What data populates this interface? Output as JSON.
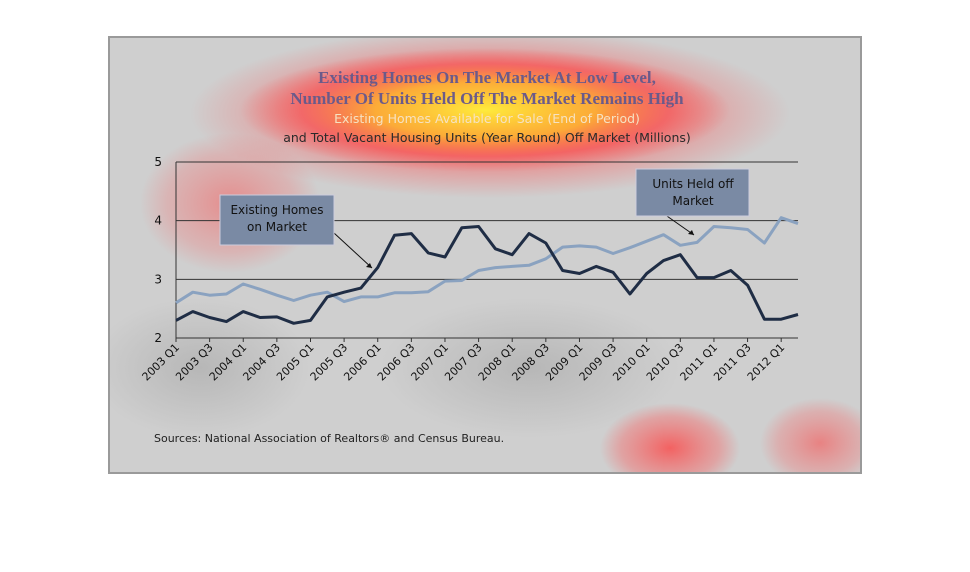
{
  "chart_data": {
    "type": "line",
    "title_line1": "Existing Homes On The Market At Low Level,",
    "title_line2": "Number Of Units Held Off The Market Remains High",
    "subtitle_line1": "Existing Homes Available for Sale (End of Period)",
    "subtitle_line2": "and Total Vacant Housing Units (Year Round) Off Market (Millions)",
    "source": "Sources: National Association of Realtors® and Census Bureau.",
    "ylim": [
      2,
      5
    ],
    "y_ticks": [
      "2",
      "3",
      "4",
      "5"
    ],
    "grid": true,
    "x": [
      "2003 Q1",
      "2003 Q2",
      "2003 Q3",
      "2003 Q4",
      "2004 Q1",
      "2004 Q2",
      "2004 Q3",
      "2004 Q4",
      "2005 Q1",
      "2005 Q2",
      "2005 Q3",
      "2005 Q4",
      "2006 Q1",
      "2006 Q2",
      "2006 Q3",
      "2006 Q4",
      "2007 Q1",
      "2007 Q2",
      "2007 Q3",
      "2007 Q4",
      "2008 Q1",
      "2008 Q2",
      "2008 Q3",
      "2008 Q4",
      "2009 Q1",
      "2009 Q2",
      "2009 Q3",
      "2009 Q4",
      "2010 Q1",
      "2010 Q2",
      "2010 Q3",
      "2010 Q4",
      "2011 Q1",
      "2011 Q2",
      "2011 Q3",
      "2011 Q4",
      "2012 Q1",
      "2012 Q2"
    ],
    "x_tick_labels": [
      "2003 Q1",
      "2003 Q3",
      "2004 Q1",
      "2004 Q3",
      "2005 Q1",
      "2005 Q3",
      "2006 Q1",
      "2006 Q3",
      "2007 Q1",
      "2007 Q3",
      "2008 Q1",
      "2008 Q3",
      "2009 Q1",
      "2009 Q3",
      "2010 Q1",
      "2010 Q3",
      "2011 Q1",
      "2011 Q3",
      "2012 Q1"
    ],
    "series": [
      {
        "name": "Existing Homes on Market",
        "color": "#1f2d45",
        "values": [
          2.3,
          2.45,
          2.35,
          2.28,
          2.45,
          2.35,
          2.36,
          2.25,
          2.3,
          2.7,
          2.78,
          2.85,
          3.2,
          3.75,
          3.78,
          3.45,
          3.38,
          3.88,
          3.9,
          3.52,
          3.42,
          3.78,
          3.62,
          3.15,
          3.1,
          3.22,
          3.12,
          2.75,
          3.1,
          3.32,
          3.42,
          3.03,
          3.03,
          3.15,
          2.9,
          2.32,
          2.32,
          2.4
        ]
      },
      {
        "name": "Units Held off Market",
        "color": "#8aa2c0",
        "values": [
          2.6,
          2.78,
          2.73,
          2.75,
          2.92,
          2.83,
          2.73,
          2.64,
          2.73,
          2.78,
          2.62,
          2.7,
          2.7,
          2.77,
          2.77,
          2.79,
          2.97,
          2.98,
          3.15,
          3.2,
          3.22,
          3.24,
          3.35,
          3.55,
          3.57,
          3.55,
          3.44,
          3.54,
          3.65,
          3.76,
          3.58,
          3.63,
          3.9,
          3.88,
          3.85,
          3.62,
          4.05,
          3.95
        ]
      }
    ],
    "annotations": [
      "Existing Homes on Market",
      "Units Held off Market"
    ]
  },
  "colors": {
    "background": "#cfcfcf",
    "grid": "#333333",
    "callout_fill": "#7a8aa4"
  }
}
